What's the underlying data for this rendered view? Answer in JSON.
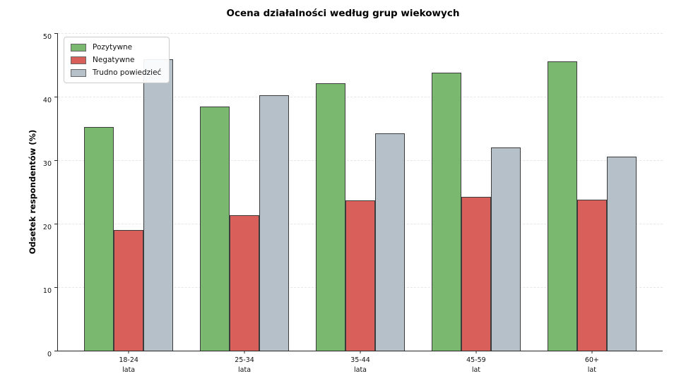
{
  "chart_data": {
    "type": "bar",
    "title": "Ocena działalności według grup wiekowych",
    "ylabel": "Odsetek respondentów (%)",
    "xlabel": "",
    "categories": [
      "18-24",
      "25-34",
      "35-44",
      "45-59",
      "60+"
    ],
    "category_units": [
      "lata",
      "lata",
      "lata",
      "lat",
      "lat"
    ],
    "series": [
      {
        "name": "Pozytywne",
        "color": "#7bb86f",
        "values": [
          35.2,
          38.5,
          42.1,
          43.8,
          45.6
        ]
      },
      {
        "name": "Negatywne",
        "color": "#d9605a",
        "values": [
          19.0,
          21.3,
          23.7,
          24.2,
          23.8
        ]
      },
      {
        "name": "Trudno powiedzieć",
        "color": "#b6c0c8",
        "values": [
          45.9,
          40.2,
          34.2,
          32.0,
          30.6
        ]
      }
    ],
    "ylim": [
      0,
      50
    ],
    "yticks": [
      0,
      10,
      20,
      30,
      40,
      50
    ],
    "grid": "horizontal-dashed",
    "legend_position": "upper-left",
    "colors": {
      "bar_edge": "#3c3c3c",
      "grid_line": "#e7e7e7",
      "axis": "#262626",
      "background": "#ffffff"
    }
  }
}
